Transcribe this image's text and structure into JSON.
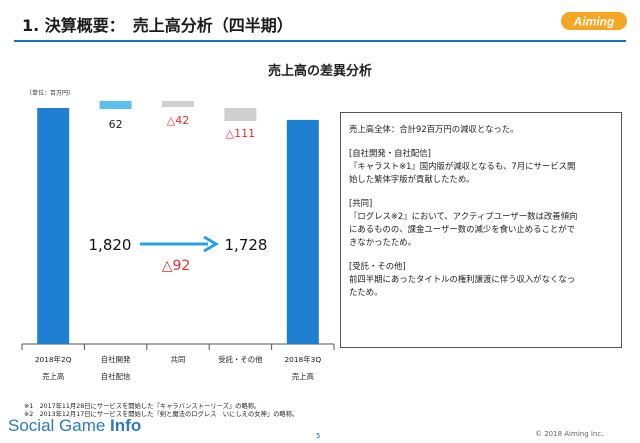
{
  "header": {
    "title": "1. 決算概要：　売上高分析（四半期）",
    "logo_text": "Aiming"
  },
  "colors": {
    "accent": "#1f6fb5",
    "bar": "#1f7fd0",
    "increase": "#5bc0f0",
    "decrease": "#cfcfcf",
    "red": "#e03030",
    "arrow": "#2aa0e0"
  },
  "chart_data": {
    "type": "bar",
    "title": "売上高の差異分析",
    "unit_label": "（単位：百万円）",
    "categories": [
      "2018年2Q\n売上高",
      "自社開発\n自社配信",
      "共同",
      "受託・その他",
      "2018年3Q\n売上高"
    ],
    "values": [
      1820,
      62,
      -42,
      -111,
      1728
    ],
    "value_labels": [
      "",
      "62",
      "△42",
      "△111",
      ""
    ],
    "big_labels": {
      "start": "1,820",
      "end": "1,728",
      "diff": "△92"
    },
    "ylim": [
      0,
      2000
    ]
  },
  "note": {
    "paragraphs": [
      [
        "売上高全体：合計92百万円の減収となった。"
      ],
      [
        "[自社開発・自社配信]",
        "『キャラスト※1』国内版が減収となるも、7月にサービス開",
        "始した繁体字版が貢献したため。"
      ],
      [
        "[共同]",
        "『ログレス※2』において、アクティブユーザー数は改善傾向",
        "にあるものの、課金ユーザー数の減少を食い止めることがで",
        "きなかったため。"
      ],
      [
        "[受託・その他]",
        "前四半期にあったタイトルの権利譲渡に伴う収入がなくなっ",
        "たため。"
      ]
    ]
  },
  "footnotes": [
    "※1　2017年11月28日にサービスを開始した『キャラバンストーリーズ』の略称。",
    "※2　2013年12月17日にサービスを開始した『剣と魔法のログレス　いにしえの女神』の略称。"
  ],
  "footer": {
    "brand_plain": "Social Game ",
    "brand_bold": "Info",
    "page": "5",
    "copyright": "© 2018 Aiming Inc."
  }
}
